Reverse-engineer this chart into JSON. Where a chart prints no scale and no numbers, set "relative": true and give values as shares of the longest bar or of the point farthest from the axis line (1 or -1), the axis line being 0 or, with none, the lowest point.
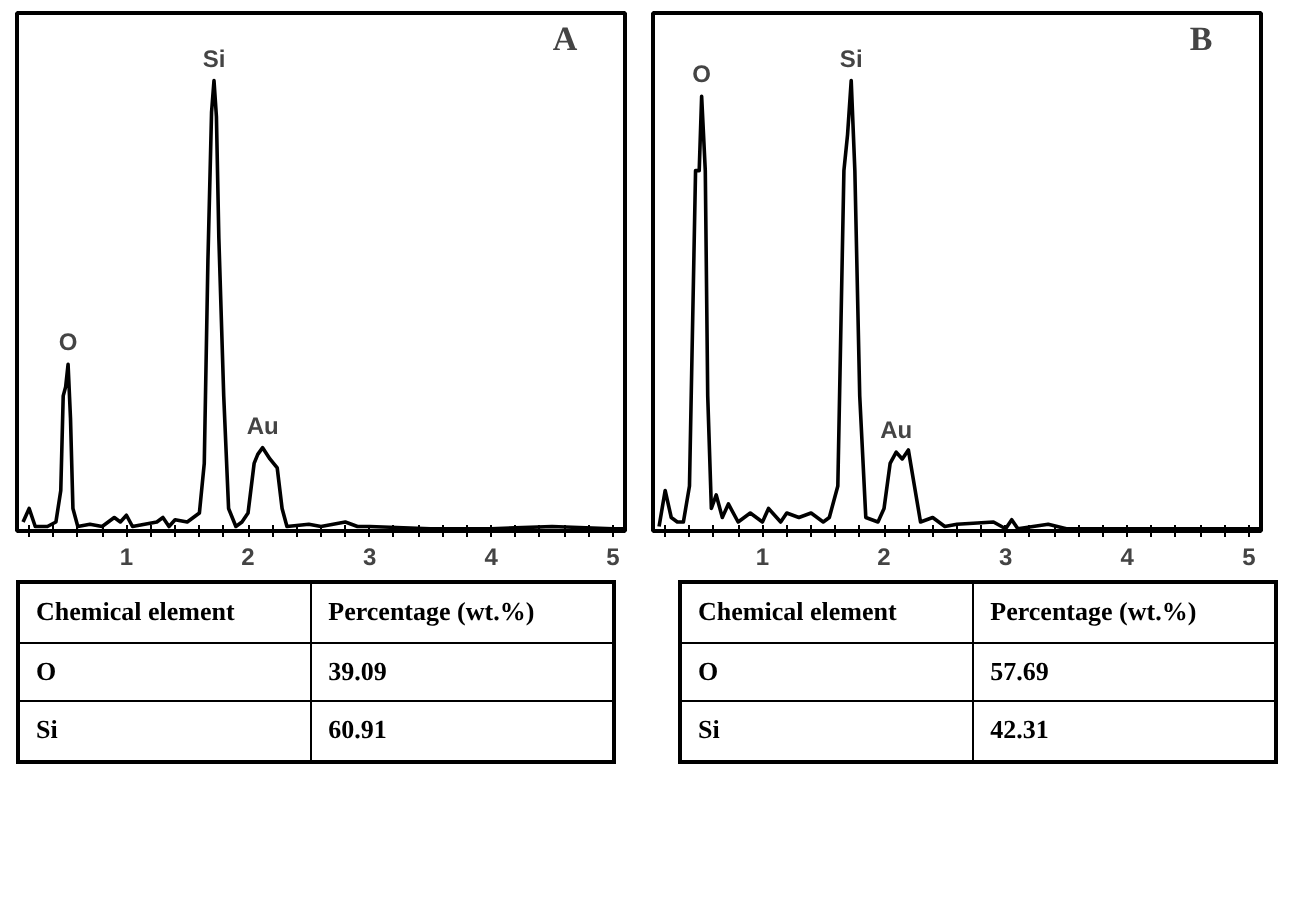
{
  "chart_data": [
    {
      "type": "line",
      "title": "A",
      "relative": true,
      "xlim": [
        0.1,
        5.1
      ],
      "xticks": [
        {
          "value": 0.2,
          "label": null
        },
        {
          "value": 0.4,
          "label": null
        },
        {
          "value": 0.6,
          "label": null
        },
        {
          "value": 0.8,
          "label": null
        },
        1,
        {
          "value": 1.2,
          "label": null
        },
        {
          "value": 1.4,
          "label": null
        },
        {
          "value": 1.6,
          "label": null
        },
        {
          "value": 1.8,
          "label": null
        },
        2,
        {
          "value": 2.2,
          "label": null
        },
        {
          "value": 2.4,
          "label": null
        },
        {
          "value": 2.6,
          "label": null
        },
        {
          "value": 2.8,
          "label": null
        },
        3,
        {
          "value": 3.2,
          "label": null
        },
        {
          "value": 3.4,
          "label": null
        },
        {
          "value": 3.6,
          "label": null
        },
        {
          "value": 3.8,
          "label": null
        },
        4,
        {
          "value": 4.2,
          "label": null
        },
        {
          "value": 4.4,
          "label": null
        },
        {
          "value": 4.6,
          "label": null
        },
        {
          "value": 4.8,
          "label": null
        },
        5
      ],
      "tick_labels": "x",
      "series": [
        {
          "color": "#000000",
          "x": [
            0.15,
            0.2,
            0.25,
            0.35,
            0.42,
            0.46,
            0.48,
            0.5,
            0.52,
            0.54,
            0.56,
            0.6,
            0.7,
            0.8,
            0.9,
            0.95,
            1.0,
            1.05,
            1.15,
            1.25,
            1.3,
            1.35,
            1.4,
            1.5,
            1.55,
            1.6,
            1.64,
            1.67,
            1.7,
            1.72,
            1.74,
            1.76,
            1.8,
            1.84,
            1.9,
            1.95,
            2.0,
            2.05,
            2.08,
            2.12,
            2.18,
            2.24,
            2.28,
            2.32,
            2.5,
            2.6,
            2.8,
            2.9,
            3.0,
            3.5,
            4.0,
            4.5,
            5.0,
            5.1
          ],
          "values": [
            0.02,
            0.05,
            0.01,
            0.01,
            0.02,
            0.09,
            0.3,
            0.32,
            0.37,
            0.25,
            0.05,
            0.01,
            0.015,
            0.01,
            0.03,
            0.02,
            0.035,
            0.01,
            0.015,
            0.02,
            0.03,
            0.01,
            0.025,
            0.02,
            0.03,
            0.04,
            0.15,
            0.6,
            0.93,
            1.0,
            0.92,
            0.65,
            0.3,
            0.05,
            0.01,
            0.02,
            0.04,
            0.15,
            0.17,
            0.185,
            0.16,
            0.14,
            0.05,
            0.01,
            0.015,
            0.01,
            0.02,
            0.01,
            0.01,
            0.005,
            0.005,
            0.01,
            0.005,
            0.005
          ]
        }
      ],
      "annotations": [
        {
          "text": "O",
          "x": 0.52,
          "y": 0.37
        },
        {
          "text": "Si",
          "x": 1.72,
          "y": 1.0
        },
        {
          "text": "Au",
          "x": 2.12,
          "y": 0.185
        }
      ]
    },
    {
      "type": "line",
      "title": "B",
      "relative": true,
      "xlim": [
        0.1,
        5.1
      ],
      "xticks": [
        {
          "value": 0.2,
          "label": null
        },
        {
          "value": 0.4,
          "label": null
        },
        {
          "value": 0.6,
          "label": null
        },
        {
          "value": 0.8,
          "label": null
        },
        1,
        {
          "value": 1.2,
          "label": null
        },
        {
          "value": 1.4,
          "label": null
        },
        {
          "value": 1.6,
          "label": null
        },
        {
          "value": 1.8,
          "label": null
        },
        2,
        {
          "value": 2.2,
          "label": null
        },
        {
          "value": 2.4,
          "label": null
        },
        {
          "value": 2.6,
          "label": null
        },
        {
          "value": 2.8,
          "label": null
        },
        3,
        {
          "value": 3.2,
          "label": null
        },
        {
          "value": 3.4,
          "label": null
        },
        {
          "value": 3.6,
          "label": null
        },
        {
          "value": 3.8,
          "label": null
        },
        4,
        {
          "value": 4.2,
          "label": null
        },
        {
          "value": 4.4,
          "label": null
        },
        {
          "value": 4.6,
          "label": null
        },
        {
          "value": 4.8,
          "label": null
        },
        5
      ],
      "tick_labels": "x",
      "series": [
        {
          "color": "#000000",
          "x": [
            0.15,
            0.2,
            0.25,
            0.3,
            0.35,
            0.4,
            0.45,
            0.48,
            0.5,
            0.53,
            0.55,
            0.58,
            0.62,
            0.67,
            0.72,
            0.8,
            0.9,
            1.0,
            1.05,
            1.15,
            1.2,
            1.3,
            1.4,
            1.5,
            1.55,
            1.62,
            1.67,
            1.7,
            1.73,
            1.76,
            1.8,
            1.85,
            1.95,
            2.0,
            2.05,
            2.1,
            2.15,
            2.2,
            2.25,
            2.3,
            2.4,
            2.5,
            2.6,
            2.9,
            3.0,
            3.05,
            3.1,
            3.35,
            3.5,
            4.0,
            4.5,
            5.0,
            5.1
          ],
          "values": [
            0.01,
            0.09,
            0.03,
            0.02,
            0.02,
            0.1,
            0.8,
            0.8,
            0.965,
            0.8,
            0.3,
            0.05,
            0.08,
            0.03,
            0.06,
            0.02,
            0.04,
            0.02,
            0.05,
            0.02,
            0.04,
            0.03,
            0.04,
            0.02,
            0.03,
            0.1,
            0.8,
            0.88,
            1.0,
            0.8,
            0.3,
            0.03,
            0.02,
            0.05,
            0.15,
            0.175,
            0.16,
            0.18,
            0.1,
            0.02,
            0.03,
            0.01,
            0.015,
            0.02,
            0.005,
            0.025,
            0.005,
            0.015,
            0.005,
            0.005,
            0.005,
            0.005,
            0.005
          ]
        }
      ],
      "annotations": [
        {
          "text": "O",
          "x": 0.5,
          "y": 0.965
        },
        {
          "text": "Si",
          "x": 1.73,
          "y": 1.0
        },
        {
          "text": "Au",
          "x": 2.1,
          "y": 0.175
        }
      ]
    },
    {
      "type": "other",
      "categories": [
        "O",
        "Si"
      ],
      "values": [
        39.09,
        60.91
      ],
      "data_labels": true,
      "annotations": [
        "Chemical element",
        "Percentage (wt.%)"
      ]
    },
    {
      "type": "other",
      "categories": [
        "O",
        "Si"
      ],
      "values": [
        57.69,
        42.31
      ],
      "data_labels": true,
      "annotations": [
        "Chemical element",
        "Percentage (wt.%)"
      ]
    }
  ]
}
